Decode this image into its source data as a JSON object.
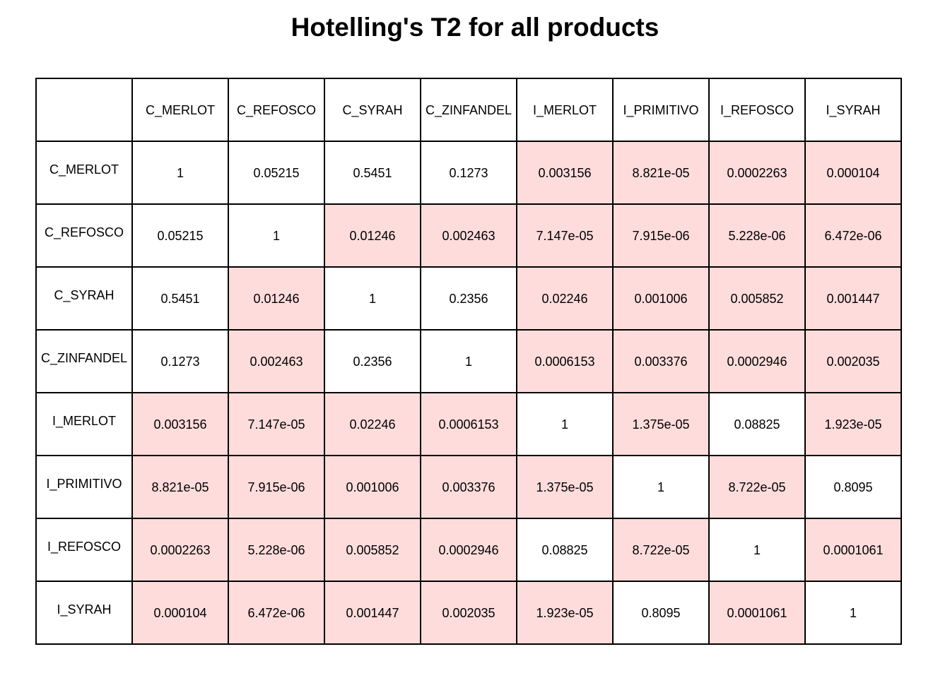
{
  "title": "Hotelling's T2 for all products",
  "colors": {
    "significant_fill": "#ffdcdc",
    "non_significant_fill": "#ffffff",
    "border": "#000000"
  },
  "chart_data": {
    "type": "table",
    "title": "Hotelling's T2 for all products",
    "columns": [
      "C_MERLOT",
      "C_REFOSCO",
      "C_SYRAH",
      "C_ZINFANDEL",
      "I_MERLOT",
      "I_PRIMITIVO",
      "I_REFOSCO",
      "I_SYRAH"
    ],
    "rows": [
      {
        "label": "C_MERLOT",
        "values": [
          "1",
          "0.05215",
          "0.5451",
          "0.1273",
          "0.003156",
          "8.821e-05",
          "0.0002263",
          "0.000104"
        ],
        "highlight": [
          false,
          false,
          false,
          false,
          true,
          true,
          true,
          true
        ]
      },
      {
        "label": "C_REFOSCO",
        "values": [
          "0.05215",
          "1",
          "0.01246",
          "0.002463",
          "7.147e-05",
          "7.915e-06",
          "5.228e-06",
          "6.472e-06"
        ],
        "highlight": [
          false,
          false,
          true,
          true,
          true,
          true,
          true,
          true
        ]
      },
      {
        "label": "C_SYRAH",
        "values": [
          "0.5451",
          "0.01246",
          "1",
          "0.2356",
          "0.02246",
          "0.001006",
          "0.005852",
          "0.001447"
        ],
        "highlight": [
          false,
          true,
          false,
          false,
          true,
          true,
          true,
          true
        ]
      },
      {
        "label": "C_ZINFANDEL",
        "values": [
          "0.1273",
          "0.002463",
          "0.2356",
          "1",
          "0.0006153",
          "0.003376",
          "0.0002946",
          "0.002035"
        ],
        "highlight": [
          false,
          true,
          false,
          false,
          true,
          true,
          true,
          true
        ]
      },
      {
        "label": "I_MERLOT",
        "values": [
          "0.003156",
          "7.147e-05",
          "0.02246",
          "0.0006153",
          "1",
          "1.375e-05",
          "0.08825",
          "1.923e-05"
        ],
        "highlight": [
          true,
          true,
          true,
          true,
          false,
          true,
          false,
          true
        ]
      },
      {
        "label": "I_PRIMITIVO",
        "values": [
          "8.821e-05",
          "7.915e-06",
          "0.001006",
          "0.003376",
          "1.375e-05",
          "1",
          "8.722e-05",
          "0.8095"
        ],
        "highlight": [
          true,
          true,
          true,
          true,
          true,
          false,
          true,
          false
        ]
      },
      {
        "label": "I_REFOSCO",
        "values": [
          "0.0002263",
          "5.228e-06",
          "0.005852",
          "0.0002946",
          "0.08825",
          "8.722e-05",
          "1",
          "0.0001061"
        ],
        "highlight": [
          true,
          true,
          true,
          true,
          false,
          true,
          false,
          true
        ]
      },
      {
        "label": "I_SYRAH",
        "values": [
          "0.000104",
          "6.472e-06",
          "0.001447",
          "0.002035",
          "1.923e-05",
          "0.8095",
          "0.0001061",
          "1"
        ],
        "highlight": [
          true,
          true,
          true,
          true,
          true,
          false,
          true,
          false
        ]
      }
    ]
  }
}
